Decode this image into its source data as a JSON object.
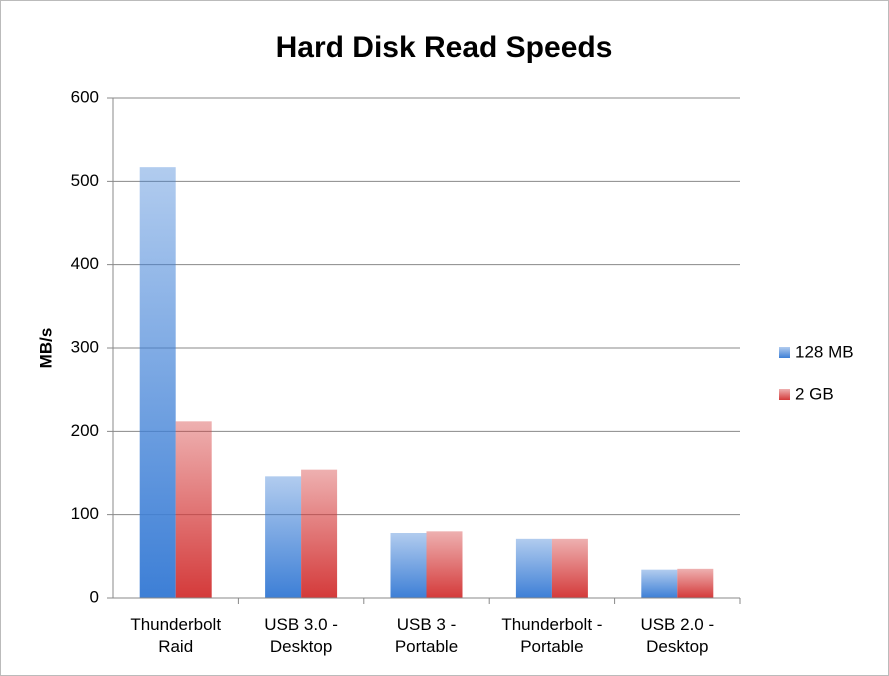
{
  "chart_data": {
    "type": "bar",
    "title": "Hard Disk Read Speeds",
    "y_label": "MB/s",
    "categories": [
      "Thunderbolt Raid",
      "USB 3.0 - Desktop",
      "USB 3 - Portable",
      "Thunderbolt - Portable",
      "USB 2.0 - Desktop"
    ],
    "series": [
      {
        "name": "128 MB",
        "color": "#3d7fd6",
        "values": [
          517,
          146,
          78,
          71,
          34
        ]
      },
      {
        "name": "2 GB",
        "color": "#d43a3a",
        "values": [
          212,
          154,
          80,
          71,
          35
        ]
      }
    ],
    "ylim": [
      0,
      600
    ],
    "yticks": [
      0,
      100,
      200,
      300,
      400,
      500,
      600
    ],
    "grid": true,
    "legend": "right"
  }
}
